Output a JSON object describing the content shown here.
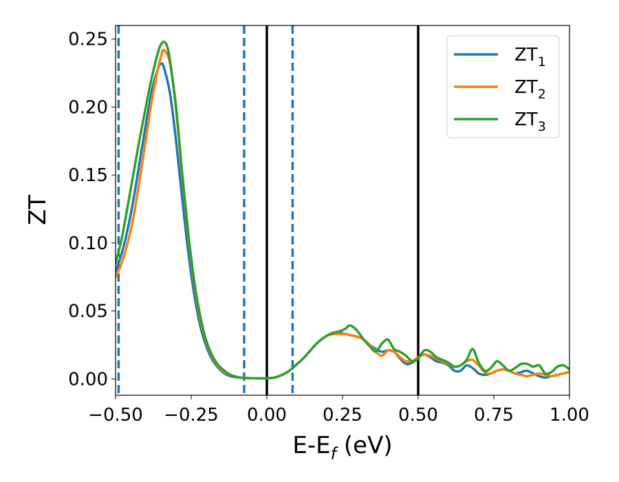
{
  "chart_data": {
    "type": "line",
    "xlabel": "E-E",
    "xlabel_sub": "f",
    "xlabel_unit": " (eV)",
    "ylabel": "ZT",
    "xlim": [
      -0.5,
      1.0
    ],
    "ylim": [
      -0.012,
      0.26
    ],
    "x_ticks": [
      -0.5,
      -0.25,
      0.0,
      0.25,
      0.5,
      0.75,
      1.0
    ],
    "x_tick_labels": [
      "−0.50",
      "−0.25",
      "0.00",
      "0.25",
      "0.50",
      "0.75",
      "1.00"
    ],
    "y_ticks": [
      0.0,
      0.05,
      0.1,
      0.15,
      0.2,
      0.25
    ],
    "y_tick_labels": [
      "0.00",
      "0.05",
      "0.10",
      "0.15",
      "0.20",
      "0.25"
    ],
    "grid": false,
    "legend_position": "top-right",
    "vlines_solid": [
      0.0,
      0.5
    ],
    "vlines_dashed": [
      -0.49,
      -0.075,
      0.085
    ],
    "vline_solid_color": "#000000",
    "vline_dashed_color": "#1f77b4",
    "series": [
      {
        "name": "ZT",
        "sub": "1",
        "color": "#1f77b4",
        "x": [
          -0.5,
          -0.48,
          -0.46,
          -0.44,
          -0.42,
          -0.4,
          -0.38,
          -0.36,
          -0.35,
          -0.34,
          -0.32,
          -0.3,
          -0.28,
          -0.26,
          -0.24,
          -0.22,
          -0.2,
          -0.18,
          -0.16,
          -0.14,
          -0.12,
          -0.1,
          -0.08,
          -0.06,
          -0.04,
          -0.02,
          0.0,
          0.02,
          0.04,
          0.06,
          0.08,
          0.1,
          0.12,
          0.14,
          0.16,
          0.18,
          0.2,
          0.22,
          0.24,
          0.26,
          0.28,
          0.3,
          0.32,
          0.34,
          0.36,
          0.38,
          0.4,
          0.42,
          0.44,
          0.46,
          0.48,
          0.5,
          0.52,
          0.54,
          0.56,
          0.58,
          0.6,
          0.62,
          0.64,
          0.66,
          0.68,
          0.7,
          0.72,
          0.74,
          0.76,
          0.78,
          0.8,
          0.82,
          0.84,
          0.86,
          0.88,
          0.9,
          0.92,
          0.94,
          0.96,
          0.98,
          1.0
        ],
        "y": [
          0.079,
          0.092,
          0.11,
          0.133,
          0.16,
          0.187,
          0.212,
          0.228,
          0.232,
          0.229,
          0.21,
          0.175,
          0.133,
          0.094,
          0.062,
          0.039,
          0.024,
          0.014,
          0.008,
          0.004,
          0.002,
          0.0012,
          0.0008,
          0.0006,
          0.0005,
          0.0004,
          0.0005,
          0.0008,
          0.002,
          0.004,
          0.007,
          0.011,
          0.015,
          0.02,
          0.025,
          0.029,
          0.032,
          0.034,
          0.034,
          0.033,
          0.032,
          0.031,
          0.029,
          0.025,
          0.022,
          0.02,
          0.021,
          0.02,
          0.015,
          0.011,
          0.012,
          0.016,
          0.018,
          0.016,
          0.013,
          0.012,
          0.01,
          0.006,
          0.006,
          0.01,
          0.008,
          0.004,
          0.003,
          0.004,
          0.006,
          0.007,
          0.006,
          0.004,
          0.005,
          0.006,
          0.004,
          0.002,
          0.001,
          0.002,
          0.003,
          0.004,
          0.005
        ]
      },
      {
        "name": "ZT",
        "sub": "2",
        "color": "#ff7f0e",
        "x": [
          -0.5,
          -0.48,
          -0.46,
          -0.44,
          -0.42,
          -0.4,
          -0.38,
          -0.36,
          -0.35,
          -0.34,
          -0.32,
          -0.3,
          -0.28,
          -0.26,
          -0.24,
          -0.22,
          -0.2,
          -0.18,
          -0.16,
          -0.14,
          -0.12,
          -0.1,
          -0.08,
          -0.06,
          -0.04,
          -0.02,
          0.0,
          0.02,
          0.04,
          0.06,
          0.08,
          0.1,
          0.12,
          0.14,
          0.16,
          0.18,
          0.2,
          0.22,
          0.24,
          0.26,
          0.28,
          0.3,
          0.32,
          0.34,
          0.36,
          0.38,
          0.4,
          0.42,
          0.44,
          0.46,
          0.48,
          0.5,
          0.52,
          0.54,
          0.56,
          0.58,
          0.6,
          0.62,
          0.64,
          0.66,
          0.68,
          0.7,
          0.72,
          0.74,
          0.76,
          0.78,
          0.8,
          0.82,
          0.84,
          0.86,
          0.88,
          0.9,
          0.92,
          0.94,
          0.96,
          0.98,
          1.0
        ],
        "y": [
          0.075,
          0.085,
          0.1,
          0.12,
          0.147,
          0.176,
          0.205,
          0.228,
          0.237,
          0.242,
          0.232,
          0.198,
          0.15,
          0.106,
          0.07,
          0.044,
          0.027,
          0.016,
          0.009,
          0.005,
          0.003,
          0.0015,
          0.0009,
          0.0006,
          0.0005,
          0.0004,
          0.0005,
          0.0008,
          0.002,
          0.004,
          0.007,
          0.011,
          0.015,
          0.02,
          0.025,
          0.029,
          0.032,
          0.033,
          0.033,
          0.033,
          0.032,
          0.031,
          0.029,
          0.025,
          0.02,
          0.017,
          0.021,
          0.02,
          0.016,
          0.013,
          0.013,
          0.016,
          0.018,
          0.017,
          0.015,
          0.013,
          0.011,
          0.009,
          0.01,
          0.013,
          0.014,
          0.01,
          0.005,
          0.004,
          0.006,
          0.007,
          0.006,
          0.004,
          0.003,
          0.002,
          0.003,
          0.004,
          0.003,
          0.002,
          0.003,
          0.004,
          0.005
        ]
      },
      {
        "name": "ZT",
        "sub": "3",
        "color": "#2ca02c",
        "x": [
          -0.5,
          -0.48,
          -0.46,
          -0.44,
          -0.42,
          -0.4,
          -0.38,
          -0.36,
          -0.35,
          -0.34,
          -0.33,
          -0.32,
          -0.3,
          -0.28,
          -0.26,
          -0.24,
          -0.22,
          -0.2,
          -0.18,
          -0.16,
          -0.14,
          -0.12,
          -0.1,
          -0.08,
          -0.06,
          -0.04,
          -0.02,
          0.0,
          0.02,
          0.04,
          0.06,
          0.08,
          0.1,
          0.12,
          0.14,
          0.16,
          0.18,
          0.2,
          0.22,
          0.24,
          0.26,
          0.27,
          0.28,
          0.3,
          0.32,
          0.34,
          0.36,
          0.38,
          0.4,
          0.42,
          0.44,
          0.46,
          0.48,
          0.5,
          0.52,
          0.54,
          0.56,
          0.58,
          0.6,
          0.62,
          0.64,
          0.66,
          0.68,
          0.7,
          0.72,
          0.74,
          0.76,
          0.78,
          0.8,
          0.82,
          0.84,
          0.86,
          0.88,
          0.9,
          0.92,
          0.94,
          0.96,
          0.98,
          1.0
        ],
        "y": [
          0.085,
          0.103,
          0.127,
          0.152,
          0.177,
          0.2,
          0.222,
          0.24,
          0.246,
          0.248,
          0.245,
          0.234,
          0.2,
          0.152,
          0.108,
          0.072,
          0.046,
          0.028,
          0.017,
          0.01,
          0.006,
          0.003,
          0.0016,
          0.0009,
          0.0006,
          0.0005,
          0.0004,
          0.0005,
          0.0008,
          0.002,
          0.004,
          0.007,
          0.011,
          0.015,
          0.02,
          0.025,
          0.029,
          0.032,
          0.034,
          0.035,
          0.037,
          0.039,
          0.039,
          0.035,
          0.029,
          0.024,
          0.02,
          0.026,
          0.029,
          0.022,
          0.02,
          0.017,
          0.013,
          0.015,
          0.021,
          0.02,
          0.016,
          0.014,
          0.012,
          0.009,
          0.01,
          0.014,
          0.022,
          0.012,
          0.006,
          0.008,
          0.013,
          0.01,
          0.006,
          0.008,
          0.011,
          0.011,
          0.009,
          0.01,
          0.004,
          0.005,
          0.009,
          0.01,
          0.007
        ]
      }
    ]
  }
}
